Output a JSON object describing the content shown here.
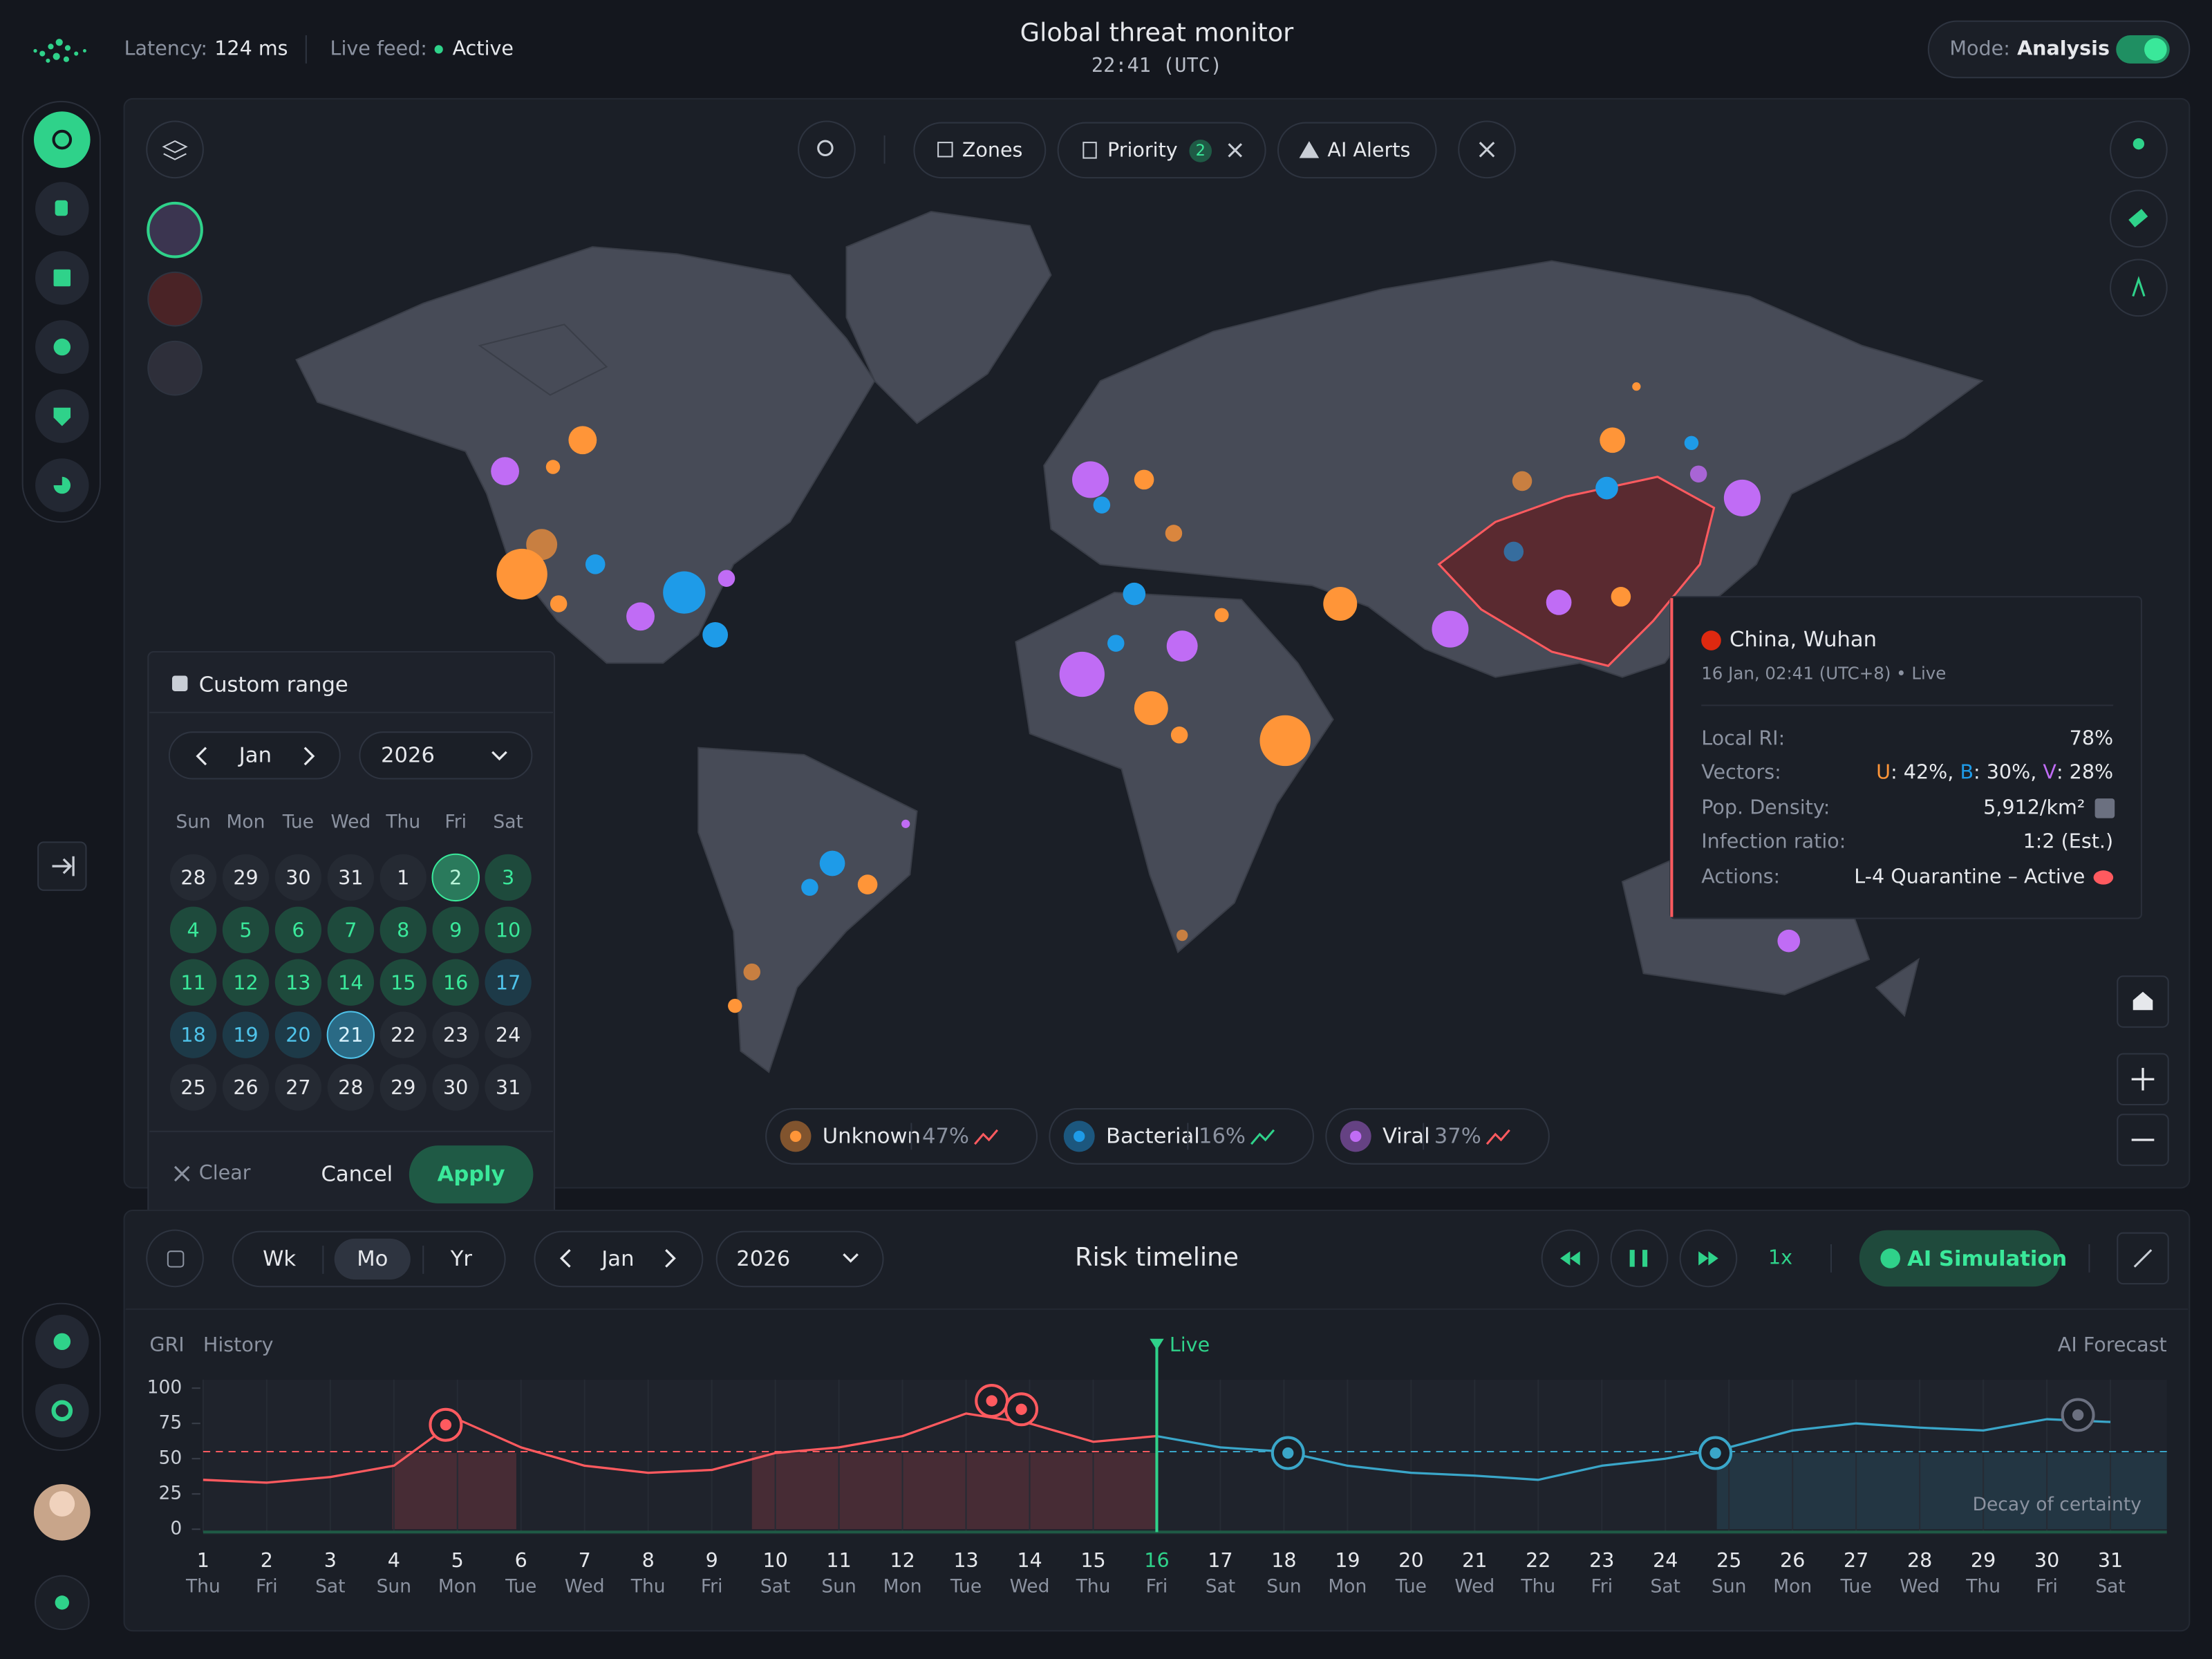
{
  "header": {
    "latency_label": "Latency:",
    "latency": "124 ms",
    "feed_label": "Live feed:",
    "feed": "Active",
    "title": "Global threat monitor",
    "time": "22:41 (UTC)",
    "mode_label": "Mode:",
    "mode": "Analysis"
  },
  "filters": {
    "zones": "Zones",
    "priority": "Priority",
    "priority_count": 2,
    "alerts": "AI Alerts"
  },
  "calendar": {
    "title": "Custom range",
    "month": "Jan",
    "year": "2026",
    "weekdays": [
      "Sun",
      "Mon",
      "Tue",
      "Wed",
      "Thu",
      "Fri",
      "Sat"
    ],
    "days": [
      28,
      29,
      30,
      31,
      1,
      2,
      3,
      4,
      5,
      6,
      7,
      8,
      9,
      10,
      11,
      12,
      13,
      14,
      15,
      16,
      17,
      18,
      19,
      20,
      21,
      22,
      23,
      24,
      25,
      26,
      27,
      28,
      29,
      30,
      31
    ],
    "clear": "Clear",
    "cancel": "Cancel",
    "apply": "Apply"
  },
  "tooltip": {
    "place": "China, Wuhan",
    "time": "16 Jan, 02:41 (UTC+8) • Live",
    "ri_label": "Local RI:",
    "ri": "78%",
    "vectors_label": "Vectors:",
    "vectors": [
      {
        "key": "U",
        "text": ": 42%, "
      },
      {
        "key": "B",
        "text": ": 30%, "
      },
      {
        "key": "V",
        "text": ": 28%"
      }
    ],
    "density_label": "Pop. Density:",
    "density": "5,912/km²",
    "ratio_label": "Infection ratio:",
    "ratio": "1:2 (Est.)",
    "actions_label": "Actions:",
    "actions": "L-4 Quarantine – Active"
  },
  "legend": [
    {
      "name": "Unknown",
      "share": "47%",
      "color": "#ff9538"
    },
    {
      "name": "Bacterial",
      "share": "16%",
      "color": "#1e9be8"
    },
    {
      "name": "Viral",
      "share": "37%",
      "color": "#c06cf5"
    }
  ],
  "timeline": {
    "title": "Risk timeline",
    "ranges": [
      "Wk",
      "Mo",
      "Yr"
    ],
    "month": "Jan",
    "year": "2026",
    "speed": "1x",
    "sim": "AI Simulation",
    "axis_label": "GRI",
    "history": "History",
    "live": "Live",
    "forecast": "AI Forecast",
    "decay": "Decay of certainty",
    "chart": {
      "type": "line",
      "x": [
        1,
        2,
        3,
        4,
        5,
        6,
        7,
        8,
        9,
        10,
        11,
        12,
        13,
        14,
        15,
        16,
        17,
        18,
        19,
        20,
        21,
        22,
        23,
        24,
        25,
        26,
        27,
        28,
        29,
        30,
        31
      ],
      "weekdays": [
        "Thu",
        "Fri",
        "Sat",
        "Sun",
        "Mon",
        "Tue",
        "Wed",
        "Thu",
        "Fri",
        "Sat",
        "Sun",
        "Mon",
        "Tue",
        "Wed",
        "Thu",
        "Fri",
        "Sat",
        "Sun",
        "Mon",
        "Tue",
        "Wed",
        "Thu",
        "Fri",
        "Sat",
        "Sun",
        "Mon",
        "Tue",
        "Wed",
        "Thu",
        "Fri",
        "Sat"
      ],
      "values": [
        35,
        33,
        37,
        45,
        78,
        58,
        45,
        40,
        42,
        54,
        58,
        66,
        82,
        75,
        62,
        66,
        58,
        55,
        45,
        40,
        38,
        35,
        45,
        50,
        58,
        70,
        75,
        72,
        70,
        78,
        76
      ],
      "xlim": [
        1,
        31
      ],
      "ylim": [
        0,
        100
      ],
      "yticks": [
        0,
        25,
        50,
        75,
        100
      ],
      "threshold": 55,
      "now": 16,
      "history_color": "#ff5a5f",
      "forecast_color": "#3aa6c9"
    }
  }
}
